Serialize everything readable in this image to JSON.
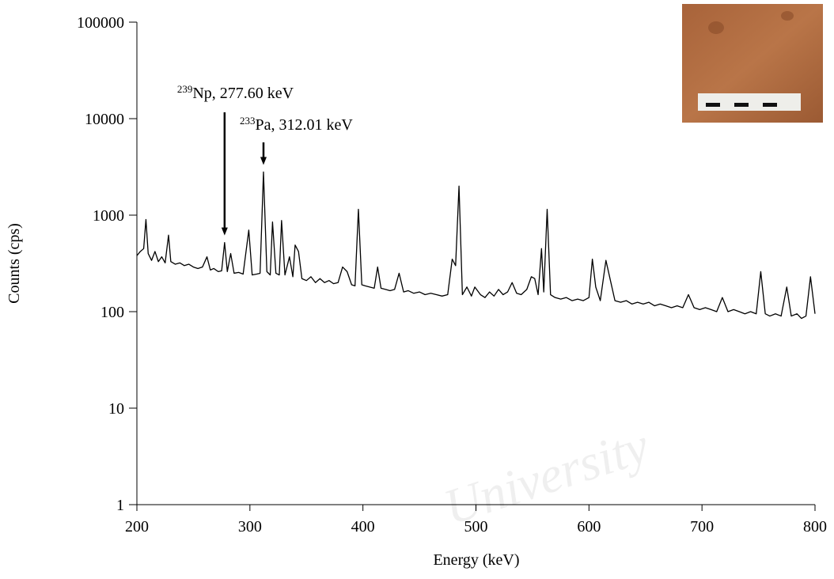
{
  "chart_data": {
    "type": "line",
    "x_label": "Energy (keV)",
    "y_label": "Counts (cps)",
    "log_y": true,
    "xlim": [
      200,
      800
    ],
    "xticks": [
      200,
      300,
      400,
      500,
      600,
      700,
      800
    ],
    "ylim": [
      1,
      100000
    ],
    "yticks": [
      1,
      10,
      100,
      1000,
      10000,
      100000
    ],
    "annotations": [
      {
        "sup": "239",
        "text": "Np, 277.60 keV",
        "x": 277.6
      },
      {
        "sup": "233",
        "text": "Pa, 312.01 keV",
        "x": 312.01
      }
    ],
    "watermark": "University",
    "x": [
      200,
      203,
      206,
      208,
      210,
      213,
      216,
      219,
      222,
      225,
      228,
      230,
      234,
      238,
      242,
      246,
      250,
      254,
      258,
      262,
      265,
      268,
      272,
      275,
      277.6,
      280,
      283,
      286,
      290,
      294,
      299,
      302,
      306,
      309,
      312,
      315,
      318,
      320,
      323,
      326,
      328,
      331,
      335,
      338,
      340,
      343,
      346,
      350,
      354,
      358,
      362,
      366,
      370,
      374,
      378,
      382,
      386,
      390,
      393,
      396,
      399,
      402,
      406,
      410,
      413,
      416,
      420,
      424,
      428,
      432,
      436,
      440,
      445,
      450,
      455,
      460,
      465,
      470,
      475,
      479,
      482,
      485,
      488,
      492,
      496,
      499,
      504,
      508,
      512,
      516,
      520,
      524,
      528,
      532,
      536,
      540,
      545,
      549,
      552,
      555,
      558,
      560,
      563,
      566,
      570,
      575,
      580,
      585,
      590,
      595,
      600,
      603,
      606,
      610,
      615,
      619,
      623,
      628,
      633,
      638,
      643,
      648,
      653,
      658,
      663,
      668,
      673,
      678,
      683,
      688,
      693,
      698,
      703,
      708,
      713,
      718,
      723,
      728,
      733,
      738,
      743,
      748,
      752,
      756,
      760,
      765,
      770,
      775,
      779,
      784,
      788,
      792,
      796,
      800
    ],
    "series": [
      {
        "color": "#000000",
        "values": [
          380,
          420,
          450,
          900,
          400,
          340,
          420,
          330,
          370,
          320,
          620,
          330,
          310,
          320,
          300,
          310,
          290,
          280,
          290,
          370,
          270,
          280,
          260,
          265,
          520,
          260,
          400,
          250,
          255,
          245,
          700,
          240,
          245,
          250,
          2800,
          260,
          240,
          850,
          250,
          240,
          880,
          240,
          370,
          230,
          490,
          420,
          220,
          210,
          230,
          200,
          220,
          200,
          210,
          195,
          200,
          290,
          260,
          190,
          185,
          1150,
          190,
          185,
          180,
          175,
          290,
          175,
          170,
          165,
          170,
          250,
          160,
          165,
          155,
          160,
          150,
          155,
          150,
          145,
          150,
          350,
          300,
          2000,
          150,
          180,
          145,
          180,
          150,
          140,
          160,
          145,
          170,
          150,
          160,
          200,
          155,
          150,
          170,
          230,
          220,
          150,
          450,
          160,
          1150,
          150,
          140,
          135,
          140,
          130,
          135,
          130,
          140,
          350,
          180,
          130,
          340,
          210,
          130,
          125,
          130,
          120,
          125,
          120,
          125,
          115,
          120,
          115,
          110,
          115,
          110,
          150,
          110,
          105,
          110,
          105,
          100,
          140,
          100,
          105,
          100,
          95,
          100,
          95,
          260,
          95,
          90,
          95,
          90,
          180,
          90,
          95,
          85,
          90,
          230,
          95
        ]
      }
    ]
  }
}
